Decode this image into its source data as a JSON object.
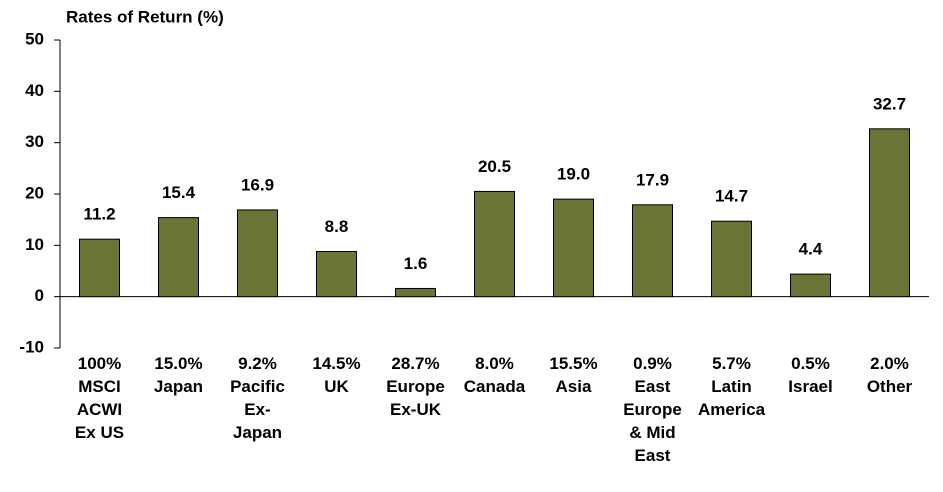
{
  "chart_data": {
    "type": "bar",
    "title": "Rates of Return (%)",
    "categories": [
      "100%\nMSCI\nACWI\nEx US",
      "15.0%\nJapan",
      "9.2%\nPacific\nEx-\nJapan",
      "14.5%\nUK",
      "28.7%\nEurope\nEx-UK",
      "8.0%\nCanada",
      "15.5%\nAsia",
      "0.9%\nEast\nEurope\n& Mid\nEast",
      "5.7%\nLatin\nAmerica",
      "0.5%\nIsrael",
      "2.0%\nOther"
    ],
    "values": [
      11.2,
      15.4,
      16.9,
      8.8,
      1.6,
      20.5,
      19.0,
      17.9,
      14.7,
      4.4,
      32.7
    ],
    "value_labels": [
      "11.2",
      "15.4",
      "16.9",
      "8.8",
      "1.6",
      "20.5",
      "19.0",
      "17.9",
      "14.7",
      "4.4",
      "32.7"
    ],
    "color": "#6b7436",
    "ylim": [
      -10,
      50
    ],
    "yticks": [
      -10,
      0,
      10,
      20,
      30,
      40,
      50
    ],
    "grid": false
  }
}
